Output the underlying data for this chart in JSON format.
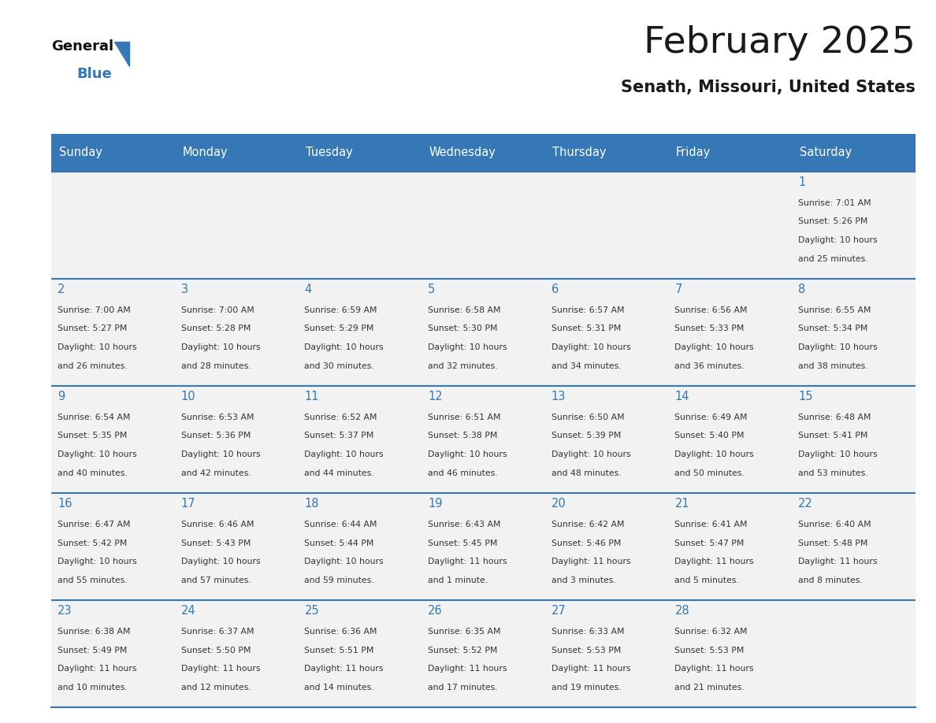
{
  "title": "February 2025",
  "subtitle": "Senath, Missouri, United States",
  "days_of_week": [
    "Sunday",
    "Monday",
    "Tuesday",
    "Wednesday",
    "Thursday",
    "Friday",
    "Saturday"
  ],
  "header_bg": "#3578b5",
  "header_text": "#ffffff",
  "cell_bg": "#f2f2f2",
  "day_text_color": "#3578b5",
  "info_text_color": "#333333",
  "line_color": "#3578b5",
  "title_color": "#1a1a1a",
  "calendar_data": [
    [
      {
        "day": null
      },
      {
        "day": null
      },
      {
        "day": null
      },
      {
        "day": null
      },
      {
        "day": null
      },
      {
        "day": null
      },
      {
        "day": 1,
        "sunrise": "7:01 AM",
        "sunset": "5:26 PM",
        "daylight": "10 hours",
        "daylight2": "and 25 minutes."
      }
    ],
    [
      {
        "day": 2,
        "sunrise": "7:00 AM",
        "sunset": "5:27 PM",
        "daylight": "10 hours",
        "daylight2": "and 26 minutes."
      },
      {
        "day": 3,
        "sunrise": "7:00 AM",
        "sunset": "5:28 PM",
        "daylight": "10 hours",
        "daylight2": "and 28 minutes."
      },
      {
        "day": 4,
        "sunrise": "6:59 AM",
        "sunset": "5:29 PM",
        "daylight": "10 hours",
        "daylight2": "and 30 minutes."
      },
      {
        "day": 5,
        "sunrise": "6:58 AM",
        "sunset": "5:30 PM",
        "daylight": "10 hours",
        "daylight2": "and 32 minutes."
      },
      {
        "day": 6,
        "sunrise": "6:57 AM",
        "sunset": "5:31 PM",
        "daylight": "10 hours",
        "daylight2": "and 34 minutes."
      },
      {
        "day": 7,
        "sunrise": "6:56 AM",
        "sunset": "5:33 PM",
        "daylight": "10 hours",
        "daylight2": "and 36 minutes."
      },
      {
        "day": 8,
        "sunrise": "6:55 AM",
        "sunset": "5:34 PM",
        "daylight": "10 hours",
        "daylight2": "and 38 minutes."
      }
    ],
    [
      {
        "day": 9,
        "sunrise": "6:54 AM",
        "sunset": "5:35 PM",
        "daylight": "10 hours",
        "daylight2": "and 40 minutes."
      },
      {
        "day": 10,
        "sunrise": "6:53 AM",
        "sunset": "5:36 PM",
        "daylight": "10 hours",
        "daylight2": "and 42 minutes."
      },
      {
        "day": 11,
        "sunrise": "6:52 AM",
        "sunset": "5:37 PM",
        "daylight": "10 hours",
        "daylight2": "and 44 minutes."
      },
      {
        "day": 12,
        "sunrise": "6:51 AM",
        "sunset": "5:38 PM",
        "daylight": "10 hours",
        "daylight2": "and 46 minutes."
      },
      {
        "day": 13,
        "sunrise": "6:50 AM",
        "sunset": "5:39 PM",
        "daylight": "10 hours",
        "daylight2": "and 48 minutes."
      },
      {
        "day": 14,
        "sunrise": "6:49 AM",
        "sunset": "5:40 PM",
        "daylight": "10 hours",
        "daylight2": "and 50 minutes."
      },
      {
        "day": 15,
        "sunrise": "6:48 AM",
        "sunset": "5:41 PM",
        "daylight": "10 hours",
        "daylight2": "and 53 minutes."
      }
    ],
    [
      {
        "day": 16,
        "sunrise": "6:47 AM",
        "sunset": "5:42 PM",
        "daylight": "10 hours",
        "daylight2": "and 55 minutes."
      },
      {
        "day": 17,
        "sunrise": "6:46 AM",
        "sunset": "5:43 PM",
        "daylight": "10 hours",
        "daylight2": "and 57 minutes."
      },
      {
        "day": 18,
        "sunrise": "6:44 AM",
        "sunset": "5:44 PM",
        "daylight": "10 hours",
        "daylight2": "and 59 minutes."
      },
      {
        "day": 19,
        "sunrise": "6:43 AM",
        "sunset": "5:45 PM",
        "daylight": "11 hours",
        "daylight2": "and 1 minute."
      },
      {
        "day": 20,
        "sunrise": "6:42 AM",
        "sunset": "5:46 PM",
        "daylight": "11 hours",
        "daylight2": "and 3 minutes."
      },
      {
        "day": 21,
        "sunrise": "6:41 AM",
        "sunset": "5:47 PM",
        "daylight": "11 hours",
        "daylight2": "and 5 minutes."
      },
      {
        "day": 22,
        "sunrise": "6:40 AM",
        "sunset": "5:48 PM",
        "daylight": "11 hours",
        "daylight2": "and 8 minutes."
      }
    ],
    [
      {
        "day": 23,
        "sunrise": "6:38 AM",
        "sunset": "5:49 PM",
        "daylight": "11 hours",
        "daylight2": "and 10 minutes."
      },
      {
        "day": 24,
        "sunrise": "6:37 AM",
        "sunset": "5:50 PM",
        "daylight": "11 hours",
        "daylight2": "and 12 minutes."
      },
      {
        "day": 25,
        "sunrise": "6:36 AM",
        "sunset": "5:51 PM",
        "daylight": "11 hours",
        "daylight2": "and 14 minutes."
      },
      {
        "day": 26,
        "sunrise": "6:35 AM",
        "sunset": "5:52 PM",
        "daylight": "11 hours",
        "daylight2": "and 17 minutes."
      },
      {
        "day": 27,
        "sunrise": "6:33 AM",
        "sunset": "5:53 PM",
        "daylight": "11 hours",
        "daylight2": "and 19 minutes."
      },
      {
        "day": 28,
        "sunrise": "6:32 AM",
        "sunset": "5:53 PM",
        "daylight": "11 hours",
        "daylight2": "and 21 minutes."
      },
      {
        "day": null
      }
    ]
  ]
}
